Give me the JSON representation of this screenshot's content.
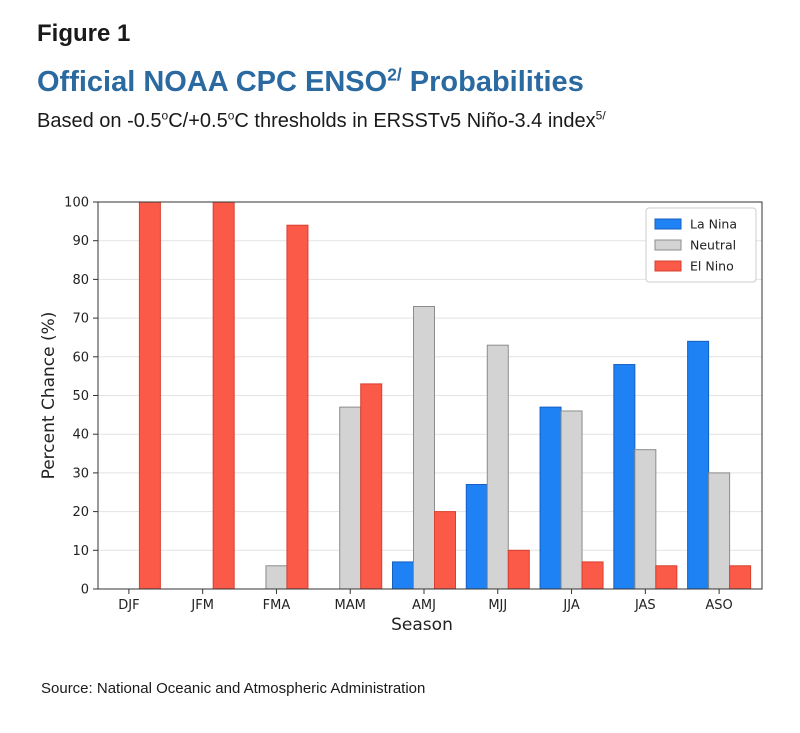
{
  "header": {
    "figure_label": "Figure 1",
    "title_main": "Official NOAA CPC ENSO",
    "title_sup": "2/",
    "title_tail": " Probabilities",
    "subtitle_a": "Based on -0.5",
    "subtitle_o1": "o",
    "subtitle_b": "C/+0.5",
    "subtitle_o2": "o",
    "subtitle_c": "C thresholds in ERSSTv5 Niño-3.4 index",
    "subtitle_sup": "5/"
  },
  "footer": {
    "source": "Source: National Oceanic and Atmospheric Administration"
  },
  "colors": {
    "la_nina": "#1e82f4",
    "neutral": "#d3d3d3",
    "el_nino": "#fa5a47",
    "title": "#2b6aa0"
  },
  "chart_data": {
    "type": "bar",
    "title": "",
    "xlabel": "Season",
    "ylabel": "Percent Chance (%)",
    "ylim": [
      0,
      100
    ],
    "yticks": [
      0,
      10,
      20,
      30,
      40,
      50,
      60,
      70,
      80,
      90,
      100
    ],
    "grid": true,
    "legend_position": "top-right",
    "categories": [
      "DJF",
      "JFM",
      "FMA",
      "MAM",
      "AMJ",
      "MJJ",
      "JJA",
      "JAS",
      "ASO"
    ],
    "series": [
      {
        "name": "La Nina",
        "color": "#1e82f4",
        "values": [
          0,
          0,
          0,
          0,
          7,
          27,
          47,
          58,
          64
        ]
      },
      {
        "name": "Neutral",
        "color": "#d3d3d3",
        "values": [
          0,
          0,
          6,
          47,
          73,
          63,
          46,
          36,
          30
        ]
      },
      {
        "name": "El Nino",
        "color": "#fa5a47",
        "values": [
          100,
          100,
          94,
          53,
          20,
          10,
          7,
          6,
          6
        ]
      }
    ]
  }
}
